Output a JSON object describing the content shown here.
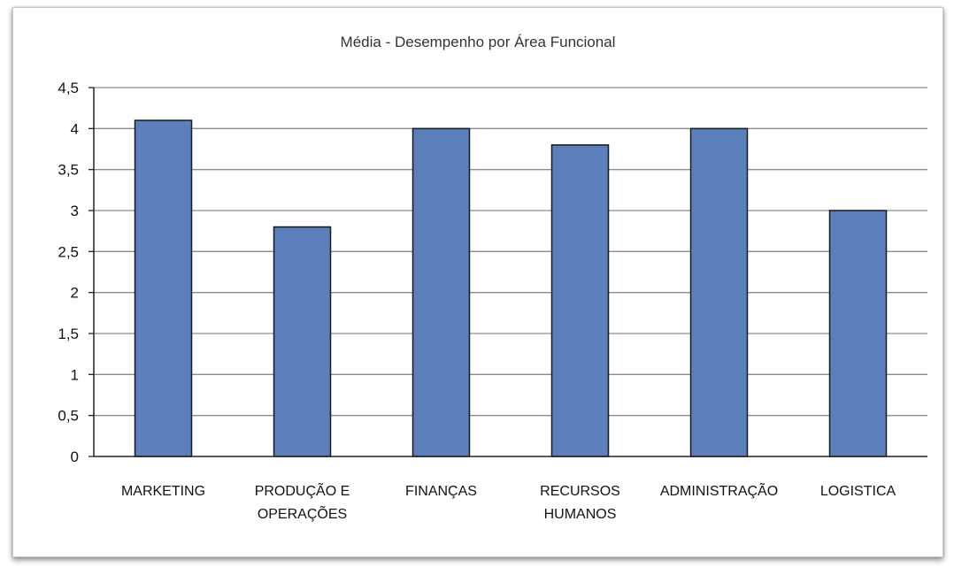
{
  "chart_data": {
    "type": "bar",
    "title": "Média - Desempenho por Área Funcional",
    "categories": [
      [
        "MARKETING"
      ],
      [
        "PRODUÇÃO E",
        "OPERAÇÕES"
      ],
      [
        "FINANÇAS"
      ],
      [
        "RECURSOS",
        "HUMANOS"
      ],
      [
        "ADMINISTRAÇÃO"
      ],
      [
        "LOGISTICA"
      ]
    ],
    "values": [
      4.1,
      2.8,
      4.0,
      3.8,
      4.0,
      3.0
    ],
    "ylim": [
      0,
      4.5
    ],
    "yticks": [
      0,
      0.5,
      1,
      1.5,
      2,
      2.5,
      3,
      3.5,
      4,
      4.5
    ],
    "ytick_labels": [
      "0",
      "0,5",
      "1",
      "1,5",
      "2",
      "2,5",
      "3",
      "3,5",
      "4",
      "4,5"
    ],
    "xlabel": "",
    "ylabel": "",
    "grid": true,
    "legend": false,
    "bar_color": "#5b7fba",
    "bar_edge_color": "#1a1a1a",
    "gridline_color": "#8c8c8c"
  }
}
